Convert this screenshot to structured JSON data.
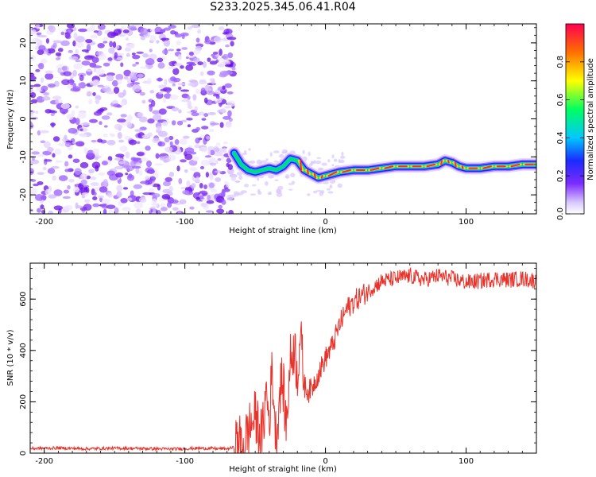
{
  "chart_data": [
    {
      "type": "heatmap",
      "title": "S233.2025.345.06.41.R04",
      "xlabel": "Height of straight line (km)",
      "ylabel": "Frequency (Hz)",
      "xlim": [
        -210,
        150
      ],
      "ylim": [
        -25,
        25
      ],
      "xticks": [
        -200,
        -100,
        0,
        100
      ],
      "yticks": [
        -20,
        -10,
        0,
        10,
        20
      ],
      "noise_region": [
        -210,
        -65
      ],
      "ridge": {
        "x": [
          -65,
          -60,
          -55,
          -50,
          -45,
          -40,
          -35,
          -30,
          -25,
          -20,
          -15,
          -10,
          -5,
          0,
          10,
          20,
          30,
          40,
          50,
          60,
          70,
          80,
          85,
          90,
          95,
          100,
          110,
          120,
          130,
          140,
          150
        ],
        "y": [
          -9,
          -12,
          -13.5,
          -14,
          -13.5,
          -13,
          -13.5,
          -12.5,
          -10.5,
          -11,
          -13.5,
          -14.5,
          -15.5,
          -15,
          -14,
          -13.5,
          -13.5,
          -13,
          -12.5,
          -12.5,
          -12.5,
          -12,
          -11,
          -11.5,
          -12.5,
          -13,
          -13,
          -12.5,
          -12.5,
          -12,
          -12
        ]
      },
      "colorbar": {
        "label": "Normalized spectral amplitude",
        "range": [
          0,
          1
        ],
        "ticks": [
          "0.0",
          "0.2",
          "0.4",
          "0.6",
          "0.8"
        ],
        "tick_values": [
          0,
          0.2,
          0.4,
          0.6,
          0.8
        ]
      }
    },
    {
      "type": "line",
      "xlabel": "Height of straight line (km)",
      "ylabel": "SNR (10 * v/v)",
      "xlim": [
        -210,
        150
      ],
      "ylim": [
        0,
        740
      ],
      "xticks": [
        -200,
        -100,
        0,
        100
      ],
      "yticks": [
        0,
        200,
        400,
        600
      ],
      "color": "#e8322a",
      "series": [
        {
          "name": "SNR",
          "x": [
            -210,
            -190,
            -170,
            -150,
            -130,
            -110,
            -90,
            -70,
            -65,
            -62,
            -58,
            -55,
            -50,
            -45,
            -42,
            -40,
            -38,
            -35,
            -32,
            -30,
            -28,
            -25,
            -22,
            -20,
            -18,
            -15,
            -12,
            -10,
            -5,
            0,
            5,
            10,
            15,
            20,
            25,
            30,
            35,
            40,
            50,
            60,
            70,
            80,
            90,
            100,
            110,
            120,
            130,
            140,
            150
          ],
          "y": [
            18,
            20,
            17,
            19,
            18,
            16,
            19,
            17,
            22,
            50,
            30,
            90,
            140,
            60,
            250,
            120,
            330,
            40,
            280,
            260,
            100,
            360,
            420,
            300,
            470,
            260,
            240,
            250,
            310,
            370,
            420,
            500,
            560,
            590,
            610,
            630,
            650,
            670,
            680,
            690,
            675,
            690,
            680,
            665,
            670,
            680,
            675,
            680,
            670
          ]
        }
      ]
    }
  ],
  "colors": {
    "line": "#e8322a",
    "noise": "#8a2be2"
  }
}
